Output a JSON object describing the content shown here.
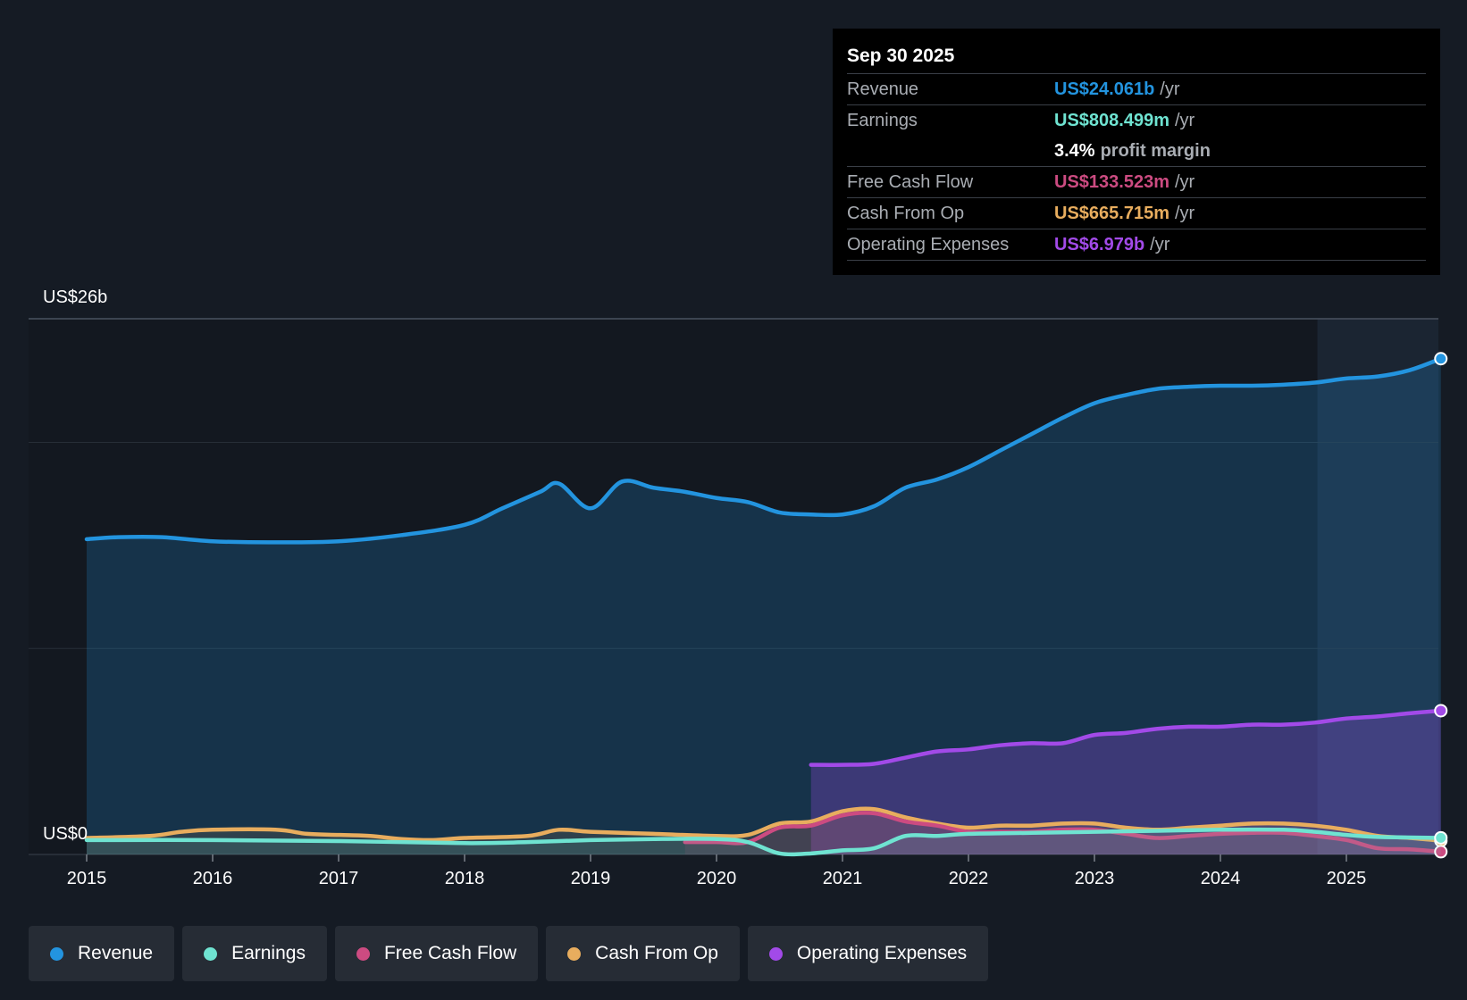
{
  "tooltip": {
    "date": "Sep 30 2025",
    "rows": [
      {
        "label": "Revenue",
        "value": "US$24.061b",
        "unit": "/yr",
        "color": "#2394df"
      },
      {
        "label": "Earnings",
        "value": "US$808.499m",
        "unit": "/yr",
        "color": "#6fe3d1"
      },
      {
        "label": "",
        "value": "3.4%",
        "unit": "profit margin",
        "color": "#ffffff"
      },
      {
        "label": "Free Cash Flow",
        "value": "US$133.523m",
        "unit": "/yr",
        "color": "#cc4b81"
      },
      {
        "label": "Cash From Op",
        "value": "US$665.715m",
        "unit": "/yr",
        "color": "#e8ad5e"
      },
      {
        "label": "Operating Expenses",
        "value": "US$6.979b",
        "unit": "/yr",
        "color": "#a24ae8"
      }
    ]
  },
  "legend": [
    {
      "label": "Revenue",
      "color": "#2394df"
    },
    {
      "label": "Earnings",
      "color": "#6fe3d1"
    },
    {
      "label": "Free Cash Flow",
      "color": "#cc4b81"
    },
    {
      "label": "Cash From Op",
      "color": "#e8ad5e"
    },
    {
      "label": "Operating Expenses",
      "color": "#a24ae8"
    }
  ],
  "chart_data": {
    "type": "area",
    "title": "",
    "xlabel": "",
    "ylabel": "",
    "y_top_label": "US$26b",
    "y_bottom_label": "US$0",
    "ylim": [
      0,
      26
    ],
    "xlim": [
      2014.55,
      2025.75
    ],
    "x_ticks": [
      "2015",
      "2016",
      "2017",
      "2018",
      "2019",
      "2020",
      "2021",
      "2022",
      "2023",
      "2024",
      "2025"
    ],
    "series": [
      {
        "name": "Revenue",
        "color": "#2394df",
        "points": [
          [
            2015,
            15.3
          ],
          [
            2015.25,
            15.4
          ],
          [
            2015.6,
            15.4
          ],
          [
            2016,
            15.2
          ],
          [
            2016.5,
            15.15
          ],
          [
            2017,
            15.2
          ],
          [
            2017.5,
            15.5
          ],
          [
            2018,
            16.0
          ],
          [
            2018.3,
            16.8
          ],
          [
            2018.6,
            17.6
          ],
          [
            2018.75,
            18.0
          ],
          [
            2019,
            16.8
          ],
          [
            2019.25,
            18.1
          ],
          [
            2019.5,
            17.8
          ],
          [
            2019.75,
            17.6
          ],
          [
            2020,
            17.3
          ],
          [
            2020.25,
            17.1
          ],
          [
            2020.5,
            16.6
          ],
          [
            2020.75,
            16.5
          ],
          [
            2021,
            16.5
          ],
          [
            2021.25,
            16.9
          ],
          [
            2021.5,
            17.8
          ],
          [
            2021.75,
            18.2
          ],
          [
            2022,
            18.8
          ],
          [
            2022.25,
            19.6
          ],
          [
            2022.5,
            20.4
          ],
          [
            2022.75,
            21.2
          ],
          [
            2023,
            21.9
          ],
          [
            2023.25,
            22.3
          ],
          [
            2023.5,
            22.6
          ],
          [
            2023.75,
            22.7
          ],
          [
            2024,
            22.75
          ],
          [
            2024.25,
            22.75
          ],
          [
            2024.5,
            22.8
          ],
          [
            2024.75,
            22.9
          ],
          [
            2025,
            23.1
          ],
          [
            2025.25,
            23.2
          ],
          [
            2025.5,
            23.5
          ],
          [
            2025.75,
            24.061
          ]
        ]
      },
      {
        "name": "Operating Expenses",
        "color": "#a24ae8",
        "points": [
          [
            2020.75,
            4.35
          ],
          [
            2021,
            4.35
          ],
          [
            2021.25,
            4.4
          ],
          [
            2021.5,
            4.7
          ],
          [
            2021.75,
            5.0
          ],
          [
            2022,
            5.1
          ],
          [
            2022.25,
            5.3
          ],
          [
            2022.5,
            5.4
          ],
          [
            2022.75,
            5.4
          ],
          [
            2023,
            5.8
          ],
          [
            2023.25,
            5.9
          ],
          [
            2023.5,
            6.1
          ],
          [
            2023.75,
            6.2
          ],
          [
            2024,
            6.2
          ],
          [
            2024.25,
            6.3
          ],
          [
            2024.5,
            6.3
          ],
          [
            2024.75,
            6.4
          ],
          [
            2025,
            6.6
          ],
          [
            2025.25,
            6.7
          ],
          [
            2025.5,
            6.85
          ],
          [
            2025.75,
            6.979
          ]
        ]
      },
      {
        "name": "Cash From Op",
        "color": "#e8ad5e",
        "points": [
          [
            2015,
            0.8
          ],
          [
            2015.5,
            0.9
          ],
          [
            2015.75,
            1.1
          ],
          [
            2016,
            1.2
          ],
          [
            2016.5,
            1.2
          ],
          [
            2016.75,
            1.0
          ],
          [
            2017,
            0.95
          ],
          [
            2017.25,
            0.9
          ],
          [
            2017.5,
            0.75
          ],
          [
            2017.75,
            0.7
          ],
          [
            2018,
            0.8
          ],
          [
            2018.5,
            0.9
          ],
          [
            2018.75,
            1.2
          ],
          [
            2019,
            1.1
          ],
          [
            2019.5,
            1.0
          ],
          [
            2020,
            0.9
          ],
          [
            2020.25,
            0.95
          ],
          [
            2020.5,
            1.5
          ],
          [
            2020.75,
            1.6
          ],
          [
            2021,
            2.1
          ],
          [
            2021.25,
            2.2
          ],
          [
            2021.5,
            1.8
          ],
          [
            2021.75,
            1.5
          ],
          [
            2022,
            1.3
          ],
          [
            2022.25,
            1.4
          ],
          [
            2022.5,
            1.4
          ],
          [
            2022.75,
            1.5
          ],
          [
            2023,
            1.5
          ],
          [
            2023.25,
            1.3
          ],
          [
            2023.5,
            1.2
          ],
          [
            2023.75,
            1.3
          ],
          [
            2024,
            1.4
          ],
          [
            2024.25,
            1.5
          ],
          [
            2024.5,
            1.5
          ],
          [
            2024.75,
            1.4
          ],
          [
            2025,
            1.2
          ],
          [
            2025.25,
            0.9
          ],
          [
            2025.5,
            0.8
          ],
          [
            2025.75,
            0.666
          ]
        ]
      },
      {
        "name": "Free Cash Flow",
        "color": "#cc4b81",
        "points": [
          [
            2019.75,
            0.6
          ],
          [
            2020,
            0.6
          ],
          [
            2020.25,
            0.6
          ],
          [
            2020.5,
            1.3
          ],
          [
            2020.75,
            1.4
          ],
          [
            2021,
            1.9
          ],
          [
            2021.25,
            2.0
          ],
          [
            2021.5,
            1.6
          ],
          [
            2021.75,
            1.4
          ],
          [
            2022,
            1.1
          ],
          [
            2022.25,
            1.1
          ],
          [
            2022.5,
            1.1
          ],
          [
            2022.75,
            1.2
          ],
          [
            2023,
            1.2
          ],
          [
            2023.25,
            1.0
          ],
          [
            2023.5,
            0.8
          ],
          [
            2023.75,
            0.9
          ],
          [
            2024,
            1.0
          ],
          [
            2024.25,
            1.05
          ],
          [
            2024.5,
            1.05
          ],
          [
            2024.75,
            0.9
          ],
          [
            2025,
            0.7
          ],
          [
            2025.25,
            0.3
          ],
          [
            2025.5,
            0.25
          ],
          [
            2025.75,
            0.134
          ]
        ]
      },
      {
        "name": "Earnings",
        "color": "#6fe3d1",
        "points": [
          [
            2015,
            0.7
          ],
          [
            2016,
            0.7
          ],
          [
            2017,
            0.65
          ],
          [
            2018,
            0.55
          ],
          [
            2018.5,
            0.6
          ],
          [
            2019,
            0.7
          ],
          [
            2019.5,
            0.75
          ],
          [
            2020,
            0.75
          ],
          [
            2020.25,
            0.6
          ],
          [
            2020.5,
            0.05
          ],
          [
            2020.75,
            0.05
          ],
          [
            2021,
            0.2
          ],
          [
            2021.25,
            0.3
          ],
          [
            2021.5,
            0.9
          ],
          [
            2021.75,
            0.9
          ],
          [
            2022,
            1.0
          ],
          [
            2022.5,
            1.05
          ],
          [
            2023,
            1.1
          ],
          [
            2023.5,
            1.15
          ],
          [
            2024,
            1.2
          ],
          [
            2024.5,
            1.2
          ],
          [
            2024.75,
            1.1
          ],
          [
            2025,
            0.95
          ],
          [
            2025.25,
            0.85
          ],
          [
            2025.75,
            0.808
          ]
        ]
      }
    ]
  }
}
